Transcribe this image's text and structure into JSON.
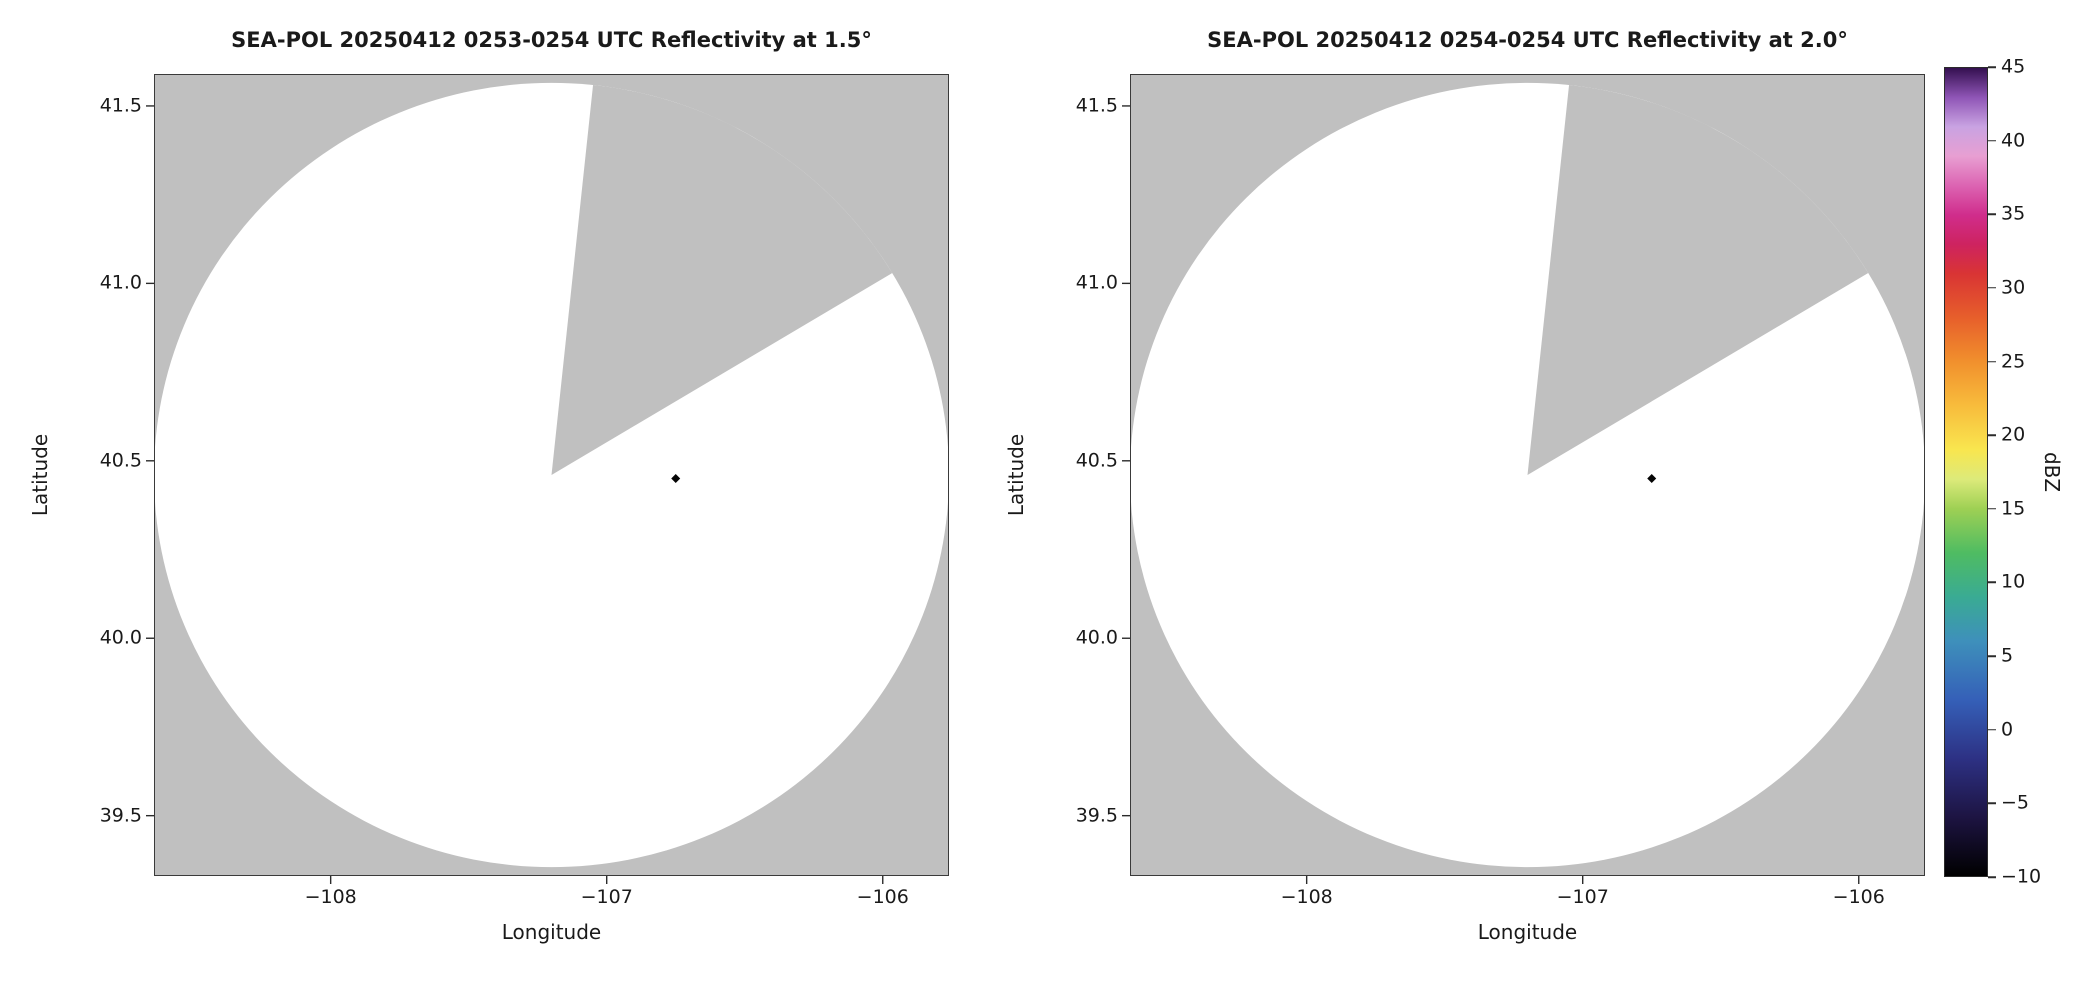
{
  "figure": {
    "background": "#ffffff"
  },
  "colorbar": {
    "label": "dBZ",
    "range": [
      -10,
      45
    ],
    "ticks": [
      {
        "value": 45,
        "label": "45"
      },
      {
        "value": 40,
        "label": "40"
      },
      {
        "value": 35,
        "label": "35"
      },
      {
        "value": 30,
        "label": "30"
      },
      {
        "value": 25,
        "label": "25"
      },
      {
        "value": 20,
        "label": "20"
      },
      {
        "value": 15,
        "label": "15"
      },
      {
        "value": 10,
        "label": "10"
      },
      {
        "value": 5,
        "label": "5"
      },
      {
        "value": 0,
        "label": "0"
      },
      {
        "value": -5,
        "label": "−5"
      },
      {
        "value": -10,
        "label": "−10"
      }
    ],
    "stops": [
      {
        "value": -10,
        "color": "#000000"
      },
      {
        "value": -6,
        "color": "#1d1442"
      },
      {
        "value": -2,
        "color": "#2d3184"
      },
      {
        "value": 2,
        "color": "#3560b8"
      },
      {
        "value": 6,
        "color": "#3e90bb"
      },
      {
        "value": 9,
        "color": "#3aab93"
      },
      {
        "value": 12,
        "color": "#4fbc62"
      },
      {
        "value": 15,
        "color": "#9ed054"
      },
      {
        "value": 17,
        "color": "#dcea7a"
      },
      {
        "value": 19,
        "color": "#f9e64f"
      },
      {
        "value": 22,
        "color": "#f8bc3c"
      },
      {
        "value": 25,
        "color": "#f1902d"
      },
      {
        "value": 28,
        "color": "#e75f2b"
      },
      {
        "value": 31,
        "color": "#d93434"
      },
      {
        "value": 33,
        "color": "#ce2360"
      },
      {
        "value": 35,
        "color": "#d02d8c"
      },
      {
        "value": 37,
        "color": "#dc64b2"
      },
      {
        "value": 39,
        "color": "#e89fd2"
      },
      {
        "value": 41,
        "color": "#c9a3e2"
      },
      {
        "value": 43,
        "color": "#8f55b6"
      },
      {
        "value": 45,
        "color": "#341050"
      }
    ]
  },
  "chart_data": [
    {
      "type": "heatmap",
      "title": "SEA-POL 20250412 0253-0254 UTC Reflectivity at 1.5°",
      "xlabel": "Longitude",
      "ylabel": "Latitude",
      "xlim": [
        -108.64,
        -105.76
      ],
      "ylim": [
        39.33,
        41.59
      ],
      "x_ticks": [
        {
          "value": -108,
          "label": "−108"
        },
        {
          "value": -107,
          "label": "−107"
        },
        {
          "value": -106,
          "label": "−106"
        }
      ],
      "y_ticks": [
        {
          "value": 41.5,
          "label": "41.5"
        },
        {
          "value": 41.0,
          "label": "41.0"
        },
        {
          "value": 40.5,
          "label": "40.5"
        },
        {
          "value": 40.0,
          "label": "40.0"
        },
        {
          "value": 39.5,
          "label": "39.5"
        }
      ],
      "values_unit": "dBZ",
      "value_range": [
        -10,
        45
      ],
      "no_data_color": "#c0c0c0",
      "coverage": {
        "center_lon": -107.2,
        "center_lat": 40.46,
        "radius_lon_deg": 1.44,
        "radius_lat_deg": 1.105,
        "fill": "#ffffff",
        "missing_sector_azimuth_deg": [
          6,
          59
        ]
      },
      "echoes": [
        {
          "lon": -106.75,
          "lat": 40.45,
          "approx_dbz": -10,
          "color": "#050505"
        }
      ]
    },
    {
      "type": "heatmap",
      "title": "SEA-POL 20250412 0254-0254 UTC Reflectivity at 2.0°",
      "xlabel": "Longitude",
      "ylabel": "Latitude",
      "xlim": [
        -108.64,
        -105.76
      ],
      "ylim": [
        39.33,
        41.59
      ],
      "x_ticks": [
        {
          "value": -108,
          "label": "−108"
        },
        {
          "value": -107,
          "label": "−107"
        },
        {
          "value": -106,
          "label": "−106"
        }
      ],
      "y_ticks": [
        {
          "value": 41.5,
          "label": "41.5"
        },
        {
          "value": 41.0,
          "label": "41.0"
        },
        {
          "value": 40.5,
          "label": "40.5"
        },
        {
          "value": 40.0,
          "label": "40.0"
        },
        {
          "value": 39.5,
          "label": "39.5"
        }
      ],
      "values_unit": "dBZ",
      "value_range": [
        -10,
        45
      ],
      "no_data_color": "#c0c0c0",
      "coverage": {
        "center_lon": -107.2,
        "center_lat": 40.46,
        "radius_lon_deg": 1.44,
        "radius_lat_deg": 1.105,
        "fill": "#ffffff",
        "missing_sector_azimuth_deg": [
          6,
          59
        ]
      },
      "echoes": [
        {
          "lon": -106.75,
          "lat": 40.45,
          "approx_dbz": -10,
          "color": "#050505"
        }
      ]
    }
  ]
}
